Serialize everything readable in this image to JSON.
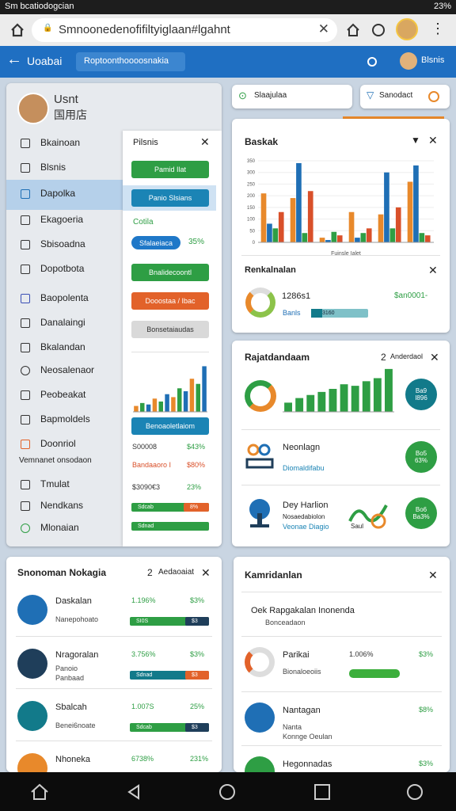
{
  "status_bar": {
    "left": "Sm bcatiodogcian",
    "right": "23%"
  },
  "browser": {
    "url": "Smnoonedenofifiltyiglaan#lgahnt"
  },
  "app_header": {
    "title": "Uoabai",
    "chip": "Roptoonthoooosnakia",
    "user": "Blsnis"
  },
  "top_chips": [
    "Slaajulaa",
    "Sanodact"
  ],
  "sidebar": {
    "user_name": "Usnt",
    "user_sub": "国用店",
    "items": [
      "Bkainoan",
      "Blsnis",
      "Dapolka",
      "Ekagoeria",
      "Sbisoadna",
      "Dopotbota",
      "Baopolenta",
      "Danalaingi",
      "Bkalandan",
      "Neosalenaor",
      "Peobeakat",
      "Bapmoldels",
      "Doonriol",
      "Vemnanet onsodaon",
      "Tmulat",
      "Nendkans",
      "Mlonaian"
    ]
  },
  "submenu": {
    "title": "Pilsnis",
    "button1": "Pamid Ilat",
    "button2": "Panio Slsians",
    "label": "Cotila",
    "pill": "Sfalaeiaca",
    "pill_value": "35%",
    "button3": "Bnalidecoontl",
    "button4": "Dooostaa / Ibac",
    "button5": "Bonsetaiaudas",
    "button6": "Benoaoletlaiom",
    "rows": [
      [
        "S00008",
        "$43%"
      ],
      [
        "Bandaaoro I",
        "$80%"
      ],
      [
        "$3090€3",
        "23%"
      ]
    ],
    "bar1": [
      "Sdcab",
      "8%"
    ],
    "bar2": "Sdnad"
  },
  "card1": {
    "title": "Baskak",
    "section": "Renkalnalan",
    "figure": "1286s1",
    "amount": "$an0001-",
    "label": "Banls",
    "bar_label": "3160"
  },
  "card2": {
    "title": "Rajatdandaam",
    "count": "2",
    "filter": "Anderdaol",
    "badge1": [
      "Ba9",
      "I896"
    ],
    "row1": {
      "title": "Neonlagn",
      "sub": "Diomaldifabu",
      "badge": [
        "Bo5",
        "63%"
      ]
    },
    "row2": {
      "title": "Dey Harlion",
      "sub": "Nosaedabiolon",
      "sub2": "Veonae Diagio",
      "note": "Saul",
      "badge": [
        "Bo6",
        "Ba3%"
      ]
    }
  },
  "card3": {
    "title": "Snonoman Nokagia",
    "count": "2",
    "filter": "Aedaoaiat",
    "rows": [
      {
        "title": "Daskalan",
        "sub": "Nanepohoato",
        "v1": "1.196%",
        "v2": "$3%",
        "bar": "SI0S",
        "bar2": "$3"
      },
      {
        "title": "Nragoralan",
        "sub": "Panoio",
        "sub2": "Panbaad",
        "v1": "3.756%",
        "v2": "$3%",
        "bar": "Sdnad",
        "bar2": "$3"
      },
      {
        "title": "Sbalcah",
        "sub": "Benei6noate",
        "v1": "1.007S",
        "v2": "25%",
        "bar": "Sdcab",
        "bar2": "$3"
      },
      {
        "title": "Nhoneka",
        "v1": "6738%",
        "v2": "231%"
      }
    ]
  },
  "card4": {
    "title": "Kamridanlan",
    "rows": [
      {
        "title": "Oek Rapgakalan Inonenda",
        "sub": "Bonceadaon"
      },
      {
        "title": "Parikai",
        "sub": "Bionaloeoiis",
        "v1": "1.006%",
        "v2": "$3%"
      },
      {
        "title": "Nantagan",
        "sub": "Nanta",
        "sub2": "Konnge Oeulan",
        "v2": "$8%"
      },
      {
        "title": "Hegonnadas",
        "v2": "$3%"
      }
    ]
  },
  "chart_data": [
    {
      "type": "bar",
      "x_label": "Fuinsle Ialet",
      "categories": [
        null,
        null,
        null,
        null,
        null,
        null
      ],
      "series": [
        {
          "color": "#e8892b",
          "values": [
            210,
            190,
            20,
            130,
            120,
            260
          ]
        },
        {
          "color": "#1f6fb5",
          "values": [
            80,
            340,
            10,
            20,
            300,
            330
          ]
        },
        {
          "color": "#2e9e44",
          "values": [
            60,
            40,
            45,
            40,
            60,
            40
          ]
        },
        {
          "color": "#d9502a",
          "values": [
            130,
            220,
            30,
            60,
            150,
            30
          ]
        }
      ],
      "ylim": [
        0,
        350
      ],
      "yticks": [
        0,
        50,
        100,
        150,
        200,
        250,
        300,
        350
      ]
    },
    {
      "type": "bar",
      "values": [
        8,
        12,
        10,
        18,
        14,
        24,
        20,
        32,
        28,
        45,
        38,
        62
      ],
      "colors": [
        "#e8892b",
        "#2e9e44",
        "#1f6fb5"
      ],
      "ylim": [
        0,
        70
      ]
    },
    {
      "type": "bar",
      "values": [
        12,
        18,
        22,
        26,
        30,
        36,
        34,
        40,
        44,
        56
      ],
      "colors": [
        "#2e9e44"
      ],
      "ylim": [
        0,
        60
      ]
    }
  ]
}
